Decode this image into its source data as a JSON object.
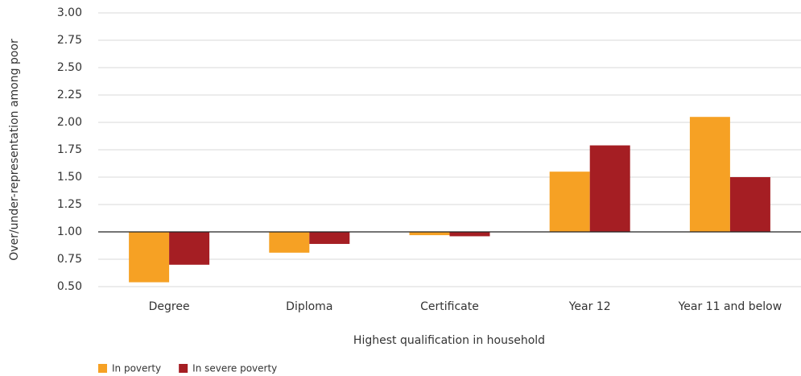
{
  "chart_data": {
    "type": "bar",
    "x_label": "Highest qualification in household",
    "y_label": "Over/under-representation among poor",
    "categories": [
      "Degree",
      "Diploma",
      "Certificate",
      "Year 12",
      "Year 11 and below"
    ],
    "series": [
      {
        "name": "In poverty",
        "color": "#f6a124",
        "values": [
          0.54,
          0.81,
          0.97,
          1.55,
          2.05
        ]
      },
      {
        "name": "In severe poverty",
        "color": "#a51e23",
        "values": [
          0.7,
          0.89,
          0.96,
          1.79,
          1.5
        ]
      }
    ],
    "ylim": [
      0.5,
      3.0
    ],
    "yticks": [
      {
        "value": 0.5,
        "label": "0.50"
      },
      0.75,
      {
        "value": 1.0,
        "label": "1.00"
      },
      1.25,
      {
        "value": 1.5,
        "label": "1.50"
      },
      1.75,
      {
        "value": 2.0,
        "label": "2.00"
      },
      2.25,
      {
        "value": 2.5,
        "label": "2.50"
      },
      2.75,
      {
        "value": 3.0,
        "label": "3.00"
      }
    ],
    "baseline": 1.0,
    "grid": true,
    "legend": "bottom-left"
  }
}
